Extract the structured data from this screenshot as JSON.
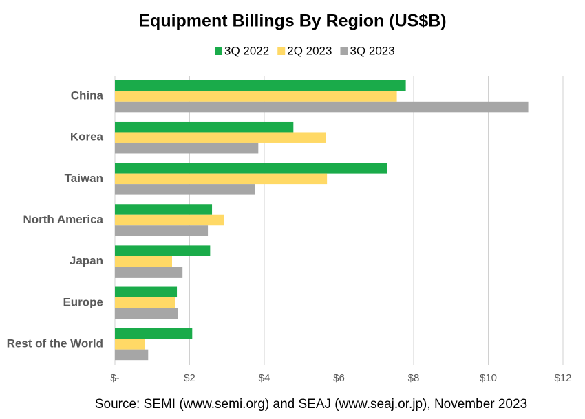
{
  "chart_data": {
    "type": "hbar",
    "title": "Equipment Billings By Region (US$B)",
    "categories": [
      "China",
      "Korea",
      "Taiwan",
      "North America",
      "Japan",
      "Europe",
      "Rest of the World"
    ],
    "series": [
      {
        "name": "3Q 2022",
        "color": "#1aab4a",
        "values": [
          7.79,
          4.78,
          7.29,
          2.6,
          2.55,
          1.66,
          2.07
        ]
      },
      {
        "name": "2Q 2023",
        "color": "#ffd966",
        "values": [
          7.55,
          5.65,
          5.68,
          2.93,
          1.53,
          1.61,
          0.81
        ]
      },
      {
        "name": "3Q 2023",
        "color": "#a6a6a6",
        "values": [
          11.07,
          3.84,
          3.76,
          2.49,
          1.81,
          1.68,
          0.89
        ]
      }
    ],
    "xlim": [
      0,
      12
    ],
    "xticks": [
      {
        "value": 0,
        "label": "$-"
      },
      {
        "value": 2,
        "label": "$2"
      },
      {
        "value": 4,
        "label": "$4"
      },
      {
        "value": 6,
        "label": "$6"
      },
      {
        "value": 8,
        "label": "$8"
      },
      {
        "value": 10,
        "label": "$10"
      },
      {
        "value": 12,
        "label": "$12"
      }
    ],
    "grid": true,
    "legend": "top",
    "source": "Source: SEMI (www.semi.org) and SEAJ (www.seaj.or.jp), November 2023"
  }
}
